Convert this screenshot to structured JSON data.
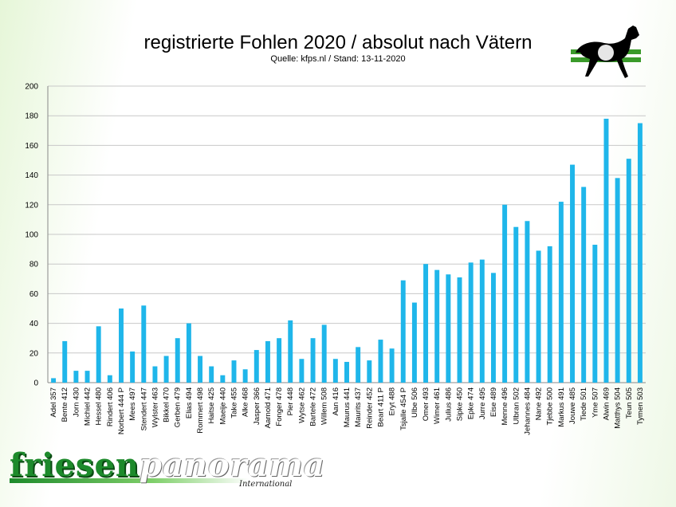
{
  "chart_data": {
    "type": "bar",
    "title": "registrierte Fohlen 2020 / absolut nach Vätern",
    "subtitle": "Quelle: kfps.nl / Stand: 13-11-2020",
    "xlabel": "",
    "ylabel": "",
    "ylim": [
      0,
      200
    ],
    "yticks": [
      "0",
      "20",
      "40",
      "60",
      "80",
      "100",
      "120",
      "140",
      "160",
      "180",
      "200"
    ],
    "grid": true,
    "bar_color": "#1fb6ea",
    "categories": [
      "Adel 357",
      "Bente 412",
      "Jorn 430",
      "Michiel 442",
      "Hessel 480",
      "Rindert 406",
      "Norbert 444 P",
      "Mees 497",
      "Stendert 447",
      "Wylster 463",
      "Bikkel 470",
      "Gerben 479",
      "Elias 494",
      "Rommert 498",
      "Haitse 425",
      "Maeije 440",
      "Take 455",
      "Alke 468",
      "Jasper 366",
      "Aarnold 471",
      "Fonger 478",
      "Pier 448",
      "Wytse 462",
      "Bartele 472",
      "Willem 508",
      "Aan 416",
      "Maurus 441",
      "Maurits 437",
      "Reinder 452",
      "Beart 411 P",
      "Eryt 488",
      "Tsjalle 454 P",
      "Ulbe 506",
      "Omer 493",
      "Wimer 461",
      "Julius 486",
      "Sipke 450",
      "Epke 474",
      "Jurre 495",
      "Eise 489",
      "Menne 496",
      "Ulbran 502",
      "Jehannes 484",
      "Nane 492",
      "Tjebbe 500",
      "Markus 491",
      "Jouwe 485",
      "Tiede 501",
      "Yme 507",
      "Alwin 469",
      "Matthys 504",
      "Teun 505",
      "Tymen 503"
    ],
    "values": [
      3,
      28,
      8,
      8,
      38,
      5,
      50,
      21,
      52,
      11,
      18,
      30,
      40,
      18,
      11,
      5,
      15,
      9,
      22,
      28,
      30,
      42,
      16,
      30,
      39,
      16,
      14,
      24,
      15,
      29,
      23,
      69,
      54,
      80,
      76,
      73,
      71,
      81,
      83,
      74,
      120,
      105,
      109,
      89,
      92,
      122,
      147,
      132,
      93,
      178,
      138,
      151,
      175
    ]
  },
  "branding": {
    "logo_word_1": "friesen",
    "logo_word_2": "panorama",
    "logo_sub": "International",
    "logo_horse_icon": "horse-logo-icon"
  }
}
